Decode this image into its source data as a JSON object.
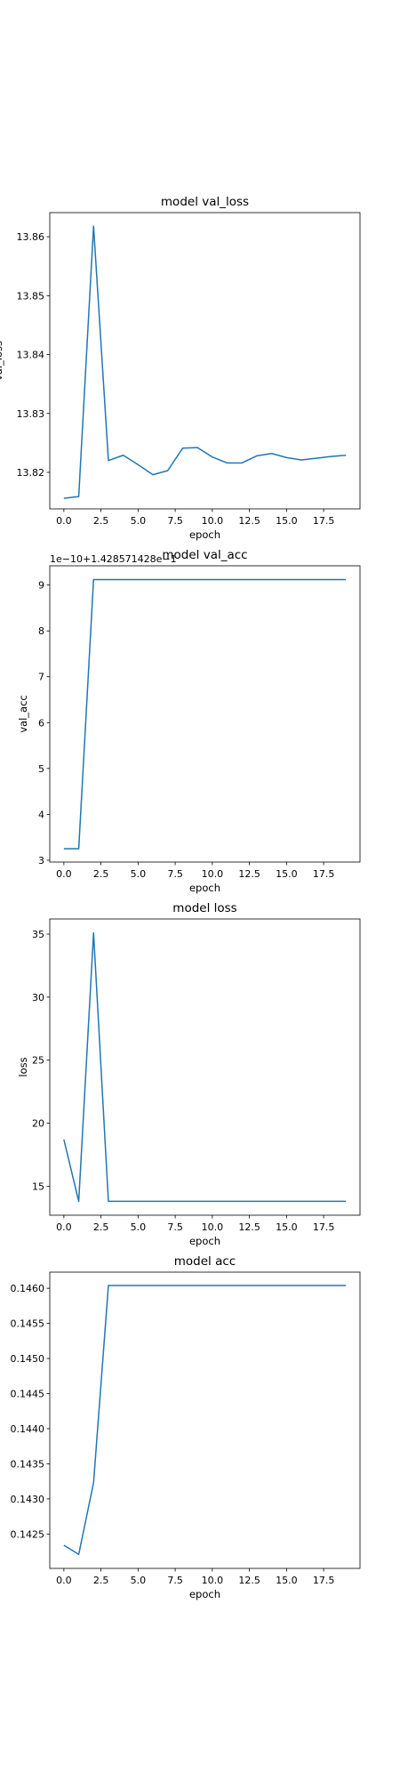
{
  "colors": {
    "line": "#1f77b4",
    "axes": "#000000",
    "background": "#ffffff"
  },
  "chart_data": [
    {
      "type": "line",
      "title": "model val_loss",
      "xlabel": "epoch",
      "ylabel": "val_loss",
      "offset_label": "",
      "xlim": [
        -0.95,
        19.95
      ],
      "ylim": [
        13.8138,
        13.8641
      ],
      "xticks": [
        0,
        2.5,
        5,
        7.5,
        10,
        12.5,
        15,
        17.5
      ],
      "xtick_labels": [
        "0.0",
        "2.5",
        "5.0",
        "7.5",
        "10.0",
        "12.5",
        "15.0",
        "17.5"
      ],
      "yticks": [
        13.82,
        13.83,
        13.84,
        13.85,
        13.86
      ],
      "ytick_labels": [
        "13.82",
        "13.83",
        "13.84",
        "13.85",
        "13.86"
      ],
      "grid": false,
      "legend": "none",
      "series": [
        {
          "x": [
            0,
            1,
            2,
            3,
            4,
            5,
            6,
            7,
            8,
            9,
            10,
            11,
            12,
            13,
            14,
            15,
            16,
            17,
            18,
            19
          ],
          "values": [
            13.8156,
            13.8159,
            13.8618,
            13.822,
            13.8229,
            13.8213,
            13.8196,
            13.8203,
            13.8241,
            13.8242,
            13.8226,
            13.8216,
            13.8216,
            13.8228,
            13.8232,
            13.8225,
            13.8221,
            13.8224,
            13.8227,
            13.8229
          ]
        }
      ]
    },
    {
      "type": "line",
      "title": "model val_acc",
      "xlabel": "epoch",
      "ylabel": "val_acc",
      "offset_label": "1e−10+1.428571428e−1",
      "xlim": [
        -0.95,
        19.95
      ],
      "ylim": [
        2.96,
        9.42
      ],
      "xticks": [
        0,
        2.5,
        5,
        7.5,
        10,
        12.5,
        15,
        17.5
      ],
      "xtick_labels": [
        "0.0",
        "2.5",
        "5.0",
        "7.5",
        "10.0",
        "12.5",
        "15.0",
        "17.5"
      ],
      "yticks": [
        3,
        4,
        5,
        6,
        7,
        8,
        9
      ],
      "ytick_labels": [
        "3",
        "4",
        "5",
        "6",
        "7",
        "8",
        "9"
      ],
      "grid": false,
      "legend": "none",
      "series": [
        {
          "x": [
            0,
            1,
            2,
            3,
            4,
            5,
            6,
            7,
            8,
            9,
            10,
            11,
            12,
            13,
            14,
            15,
            16,
            17,
            18,
            19
          ],
          "values": [
            3.25,
            3.25,
            9.12,
            9.12,
            9.12,
            9.12,
            9.12,
            9.12,
            9.12,
            9.12,
            9.12,
            9.12,
            9.12,
            9.12,
            9.12,
            9.12,
            9.12,
            9.12,
            9.12,
            9.12
          ]
        }
      ]
    },
    {
      "type": "line",
      "title": "model loss",
      "xlabel": "epoch",
      "ylabel": "loss",
      "offset_label": "",
      "xlim": [
        -0.95,
        19.95
      ],
      "ylim": [
        12.7,
        36.2
      ],
      "xticks": [
        0,
        2.5,
        5,
        7.5,
        10,
        12.5,
        15,
        17.5
      ],
      "xtick_labels": [
        "0.0",
        "2.5",
        "5.0",
        "7.5",
        "10.0",
        "12.5",
        "15.0",
        "17.5"
      ],
      "yticks": [
        15,
        20,
        25,
        30,
        35
      ],
      "ytick_labels": [
        "15",
        "20",
        "25",
        "30",
        "35"
      ],
      "grid": false,
      "legend": "none",
      "series": [
        {
          "x": [
            0,
            1,
            2,
            3,
            4,
            5,
            6,
            7,
            8,
            9,
            10,
            11,
            12,
            13,
            14,
            15,
            16,
            17,
            18,
            19
          ],
          "values": [
            18.7,
            13.8,
            35.1,
            13.8,
            13.8,
            13.8,
            13.8,
            13.8,
            13.8,
            13.8,
            13.8,
            13.8,
            13.8,
            13.8,
            13.8,
            13.8,
            13.8,
            13.8,
            13.8,
            13.8
          ]
        }
      ]
    },
    {
      "type": "line",
      "title": "model acc",
      "xlabel": "epoch",
      "ylabel": "",
      "offset_label": "",
      "xlim": [
        -0.95,
        19.95
      ],
      "ylim": [
        0.14201,
        0.14623
      ],
      "xticks": [
        0,
        2.5,
        5,
        7.5,
        10,
        12.5,
        15,
        17.5
      ],
      "xtick_labels": [
        "0.0",
        "2.5",
        "5.0",
        "7.5",
        "10.0",
        "12.5",
        "15.0",
        "17.5"
      ],
      "yticks": [
        0.1425,
        0.143,
        0.1435,
        0.144,
        0.1445,
        0.145,
        0.1455,
        0.146
      ],
      "ytick_labels": [
        "0.1425",
        "0.1430",
        "0.1435",
        "0.1440",
        "0.1445",
        "0.1450",
        "0.1455",
        "0.1460"
      ],
      "grid": false,
      "legend": "none",
      "series": [
        {
          "x": [
            0,
            1,
            2,
            3,
            4,
            5,
            6,
            7,
            8,
            9,
            10,
            11,
            12,
            13,
            14,
            15,
            16,
            17,
            18,
            19
          ],
          "values": [
            0.14234,
            0.14221,
            0.14323,
            0.14604,
            0.14604,
            0.14604,
            0.14604,
            0.14604,
            0.14604,
            0.14604,
            0.14604,
            0.14604,
            0.14604,
            0.14604,
            0.14604,
            0.14604,
            0.14604,
            0.14604,
            0.14604,
            0.14604
          ]
        }
      ]
    }
  ]
}
